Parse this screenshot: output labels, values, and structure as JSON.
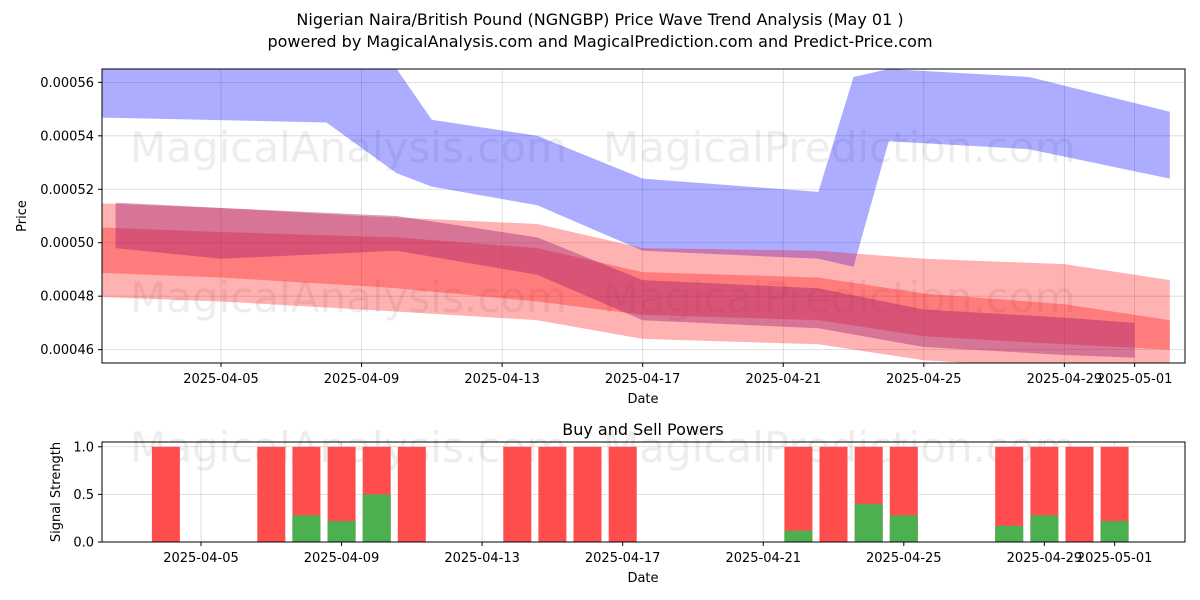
{
  "title_line1": "Nigerian Naira/British Pound (NGNGBP) Price Wave Trend Analysis (May 01 )",
  "title_line2": "powered by MagicalAnalysis.com and MagicalPrediction.com and Predict-Price.com",
  "watermarks": [
    "MagicalAnalysis.com",
    "MagicalPrediction.com"
  ],
  "colors": {
    "blue_band": "#0000ff",
    "red_band": "#ff0000",
    "buy": "#4caf50",
    "sell": "#ff4d4d"
  },
  "chart_data": [
    {
      "type": "area",
      "xlabel": "Date",
      "ylabel": "Price",
      "ylim": [
        0.000455,
        0.000565
      ],
      "xlim": [
        "2025-04-01",
        "2025-05-02"
      ],
      "grid": true,
      "x_ticks": [
        "2025-04-05",
        "2025-04-09",
        "2025-04-13",
        "2025-04-17",
        "2025-04-21",
        "2025-04-25",
        "2025-04-29",
        "2025-05-01"
      ],
      "y_ticks": [
        "0.00046",
        "0.00048",
        "0.00050",
        "0.00052",
        "0.00054",
        "0.00056"
      ],
      "series": [
        {
          "color": "blue",
          "x": [
            "2025-04-01",
            "2025-04-08",
            "2025-04-10",
            "2025-04-11",
            "2025-04-14",
            "2025-04-17",
            "2025-04-22",
            "2025-04-23",
            "2025-04-24",
            "2025-04-28",
            "2025-05-02"
          ],
          "upper": [
            0.000565,
            0.000565,
            0.000565,
            0.000546,
            0.00054,
            0.000524,
            0.000519,
            0.000562,
            0.000565,
            0.000562,
            0.000549
          ],
          "lower": [
            0.000547,
            0.000545,
            0.000526,
            0.000521,
            0.000514,
            0.000497,
            0.000494,
            0.000491,
            0.000538,
            0.000535,
            0.000524
          ]
        },
        {
          "color": "red",
          "x": [
            "2025-04-01",
            "2025-04-05",
            "2025-04-09",
            "2025-04-14",
            "2025-04-17",
            "2025-04-22",
            "2025-04-25",
            "2025-04-29",
            "2025-05-02"
          ],
          "upper": [
            0.000515,
            0.000513,
            0.00051,
            0.000507,
            0.000498,
            0.000497,
            0.000494,
            0.000492,
            0.000486
          ],
          "lower": [
            0.00048,
            0.000478,
            0.000475,
            0.000471,
            0.000464,
            0.000462,
            0.000456,
            0.000453,
            0.000452
          ]
        },
        {
          "color": "red",
          "x": [
            "2025-04-01",
            "2025-04-05",
            "2025-04-10",
            "2025-04-14",
            "2025-04-17",
            "2025-04-22",
            "2025-04-25",
            "2025-04-29",
            "2025-05-02"
          ],
          "upper": [
            0.000506,
            0.000504,
            0.000502,
            0.000498,
            0.000489,
            0.000487,
            0.000481,
            0.000477,
            0.000471
          ],
          "lower": [
            0.000489,
            0.000487,
            0.000483,
            0.000478,
            0.000473,
            0.000471,
            0.000465,
            0.000462,
            0.00046
          ]
        },
        {
          "color": "purple",
          "x": [
            "2025-04-02",
            "2025-04-05",
            "2025-04-10",
            "2025-04-14",
            "2025-04-17",
            "2025-04-22",
            "2025-04-25",
            "2025-04-29",
            "2025-05-01"
          ],
          "upper": [
            0.000515,
            0.000513,
            0.00051,
            0.000502,
            0.000486,
            0.000483,
            0.000475,
            0.000472,
            0.00047
          ],
          "lower": [
            0.000498,
            0.000494,
            0.000497,
            0.000488,
            0.000471,
            0.000468,
            0.000461,
            0.000458,
            0.000457
          ]
        }
      ]
    },
    {
      "type": "bar",
      "title": "Buy and Sell Powers",
      "xlabel": "Date",
      "ylabel": "Signal Strength",
      "ylim": [
        0,
        1.05
      ],
      "grid": true,
      "x_ticks": [
        "2025-04-05",
        "2025-04-09",
        "2025-04-13",
        "2025-04-17",
        "2025-04-21",
        "2025-04-25",
        "2025-04-29",
        "2025-05-01"
      ],
      "y_ticks": [
        "0.0",
        "0.5",
        "1.0"
      ],
      "dates": [
        "2025-04-04",
        "2025-04-07",
        "2025-04-08",
        "2025-04-09",
        "2025-04-10",
        "2025-04-11",
        "2025-04-14",
        "2025-04-15",
        "2025-04-16",
        "2025-04-17",
        "2025-04-22",
        "2025-04-23",
        "2025-04-24",
        "2025-04-25",
        "2025-04-28",
        "2025-04-29",
        "2025-04-30",
        "2025-05-01"
      ],
      "series": [
        {
          "name": "Sell",
          "values": [
            1,
            1,
            1,
            1,
            1,
            1,
            1,
            1,
            1,
            1,
            1,
            1,
            1,
            1,
            1,
            1,
            1,
            1
          ]
        },
        {
          "name": "Buy",
          "values": [
            0,
            0,
            0.28,
            0.22,
            0.5,
            0,
            0,
            0,
            0,
            0,
            0.12,
            0,
            0.4,
            0.28,
            0.17,
            0.28,
            0,
            0.22
          ]
        }
      ]
    }
  ]
}
